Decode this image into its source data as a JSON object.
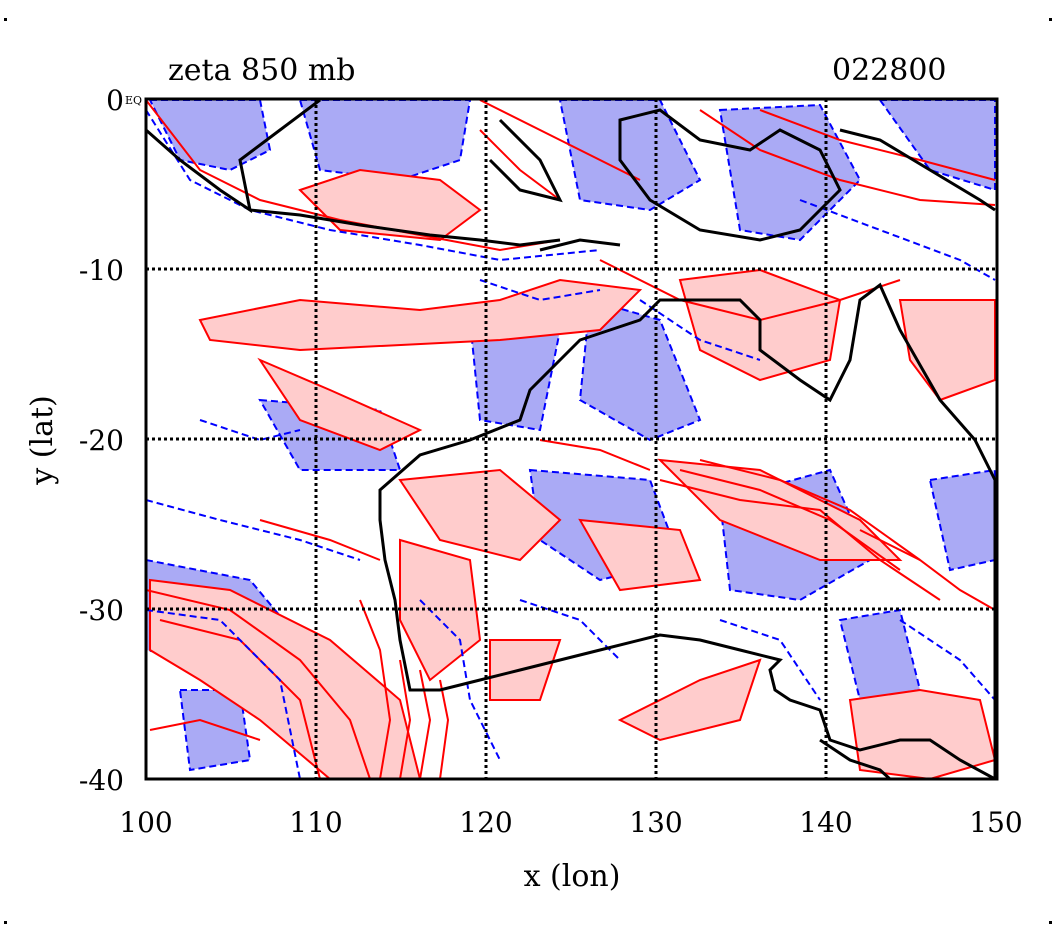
{
  "title_left": "zeta 850 mb",
  "title_right": "022800",
  "corner_tag": "EQ",
  "x_axis": {
    "label": "x (lon)",
    "ticks": [
      100,
      110,
      120,
      130,
      140,
      150
    ],
    "range": [
      100,
      150
    ]
  },
  "y_axis": {
    "label": "y (lat)",
    "ticks": [
      0,
      -10,
      -20,
      -30,
      -40
    ],
    "range": [
      -40,
      0
    ]
  },
  "grid": true,
  "colors": {
    "positive_line": "#ff0000",
    "positive_fill": "#ffcccc",
    "negative_line": "#0000ff",
    "negative_fill": "#aaaaf5",
    "coast": "#000000",
    "grid": "#000000"
  }
}
